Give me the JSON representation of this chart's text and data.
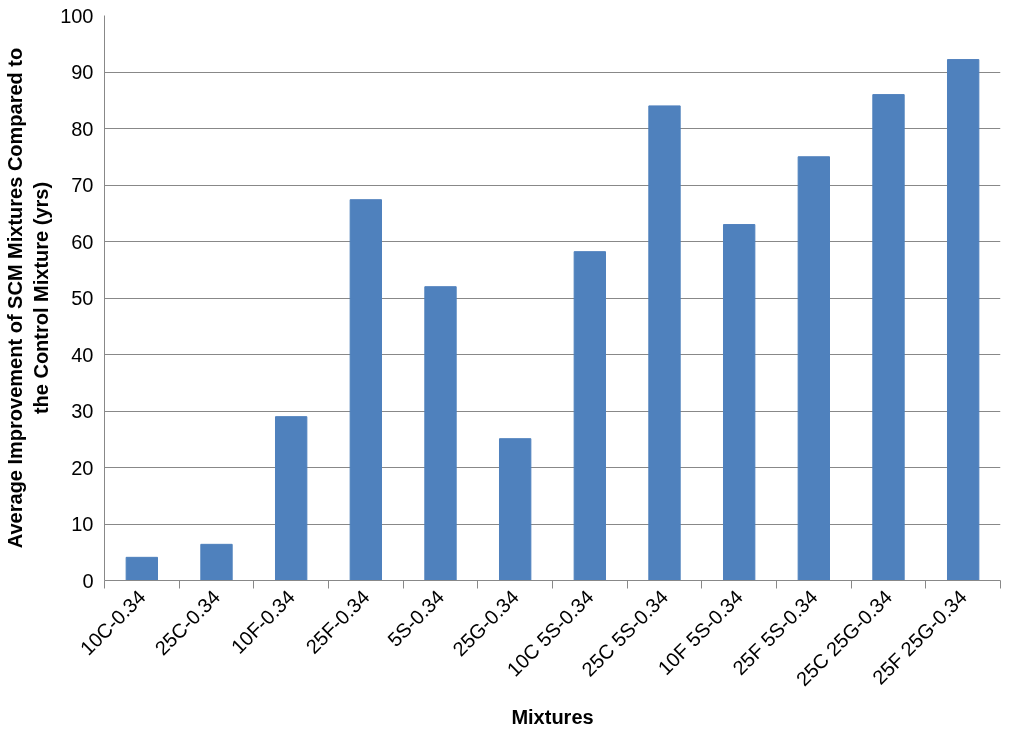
{
  "chart_data": {
    "type": "bar",
    "xlabel": "Mixtures",
    "ylabel": "Average Improvement of SCM Mixtures Compared to\nthe Control Mixture (yrs)",
    "categories": [
      "10C-0.34",
      "25C-0.34",
      "10F-0.34",
      "25F-0.34",
      "5S-0.34",
      "25G-0.34",
      "10C 5S-0.34",
      "25C 5S-0.34",
      "10F 5S-0.34",
      "25F 5S-0.34",
      "25C 25G-0.34",
      "25F 25G-0.34"
    ],
    "values": [
      4.1,
      6.4,
      29.0,
      67.4,
      52.0,
      25.1,
      58.2,
      84.0,
      63.0,
      75.0,
      86.0,
      92.2
    ],
    "color": "#4f81bd",
    "ylim": [
      0,
      100
    ],
    "yticks": [
      0,
      10,
      20,
      30,
      40,
      50,
      60,
      70,
      80,
      90,
      100
    ],
    "grid": "y"
  }
}
